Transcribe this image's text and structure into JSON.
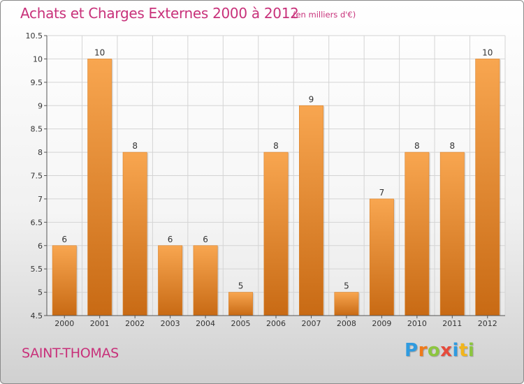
{
  "header": {
    "title": "Achats et Charges Externes 2000 à 2012",
    "subtitle": "(en milliers d'€)"
  },
  "footer": {
    "place_name": "SAINT-THOMAS",
    "logo_letters": [
      {
        "char": "P",
        "color": "#2f9be0"
      },
      {
        "char": "r",
        "color": "#ef7a1a"
      },
      {
        "char": "o",
        "color": "#8cc63f"
      },
      {
        "char": "x",
        "color": "#e64a3b"
      },
      {
        "char": "i",
        "color": "#2f9be0"
      },
      {
        "char": "t",
        "color": "#f2b51c"
      },
      {
        "char": "i",
        "color": "#8cc63f"
      }
    ]
  },
  "colors": {
    "title": "#c8317a",
    "bar_light": "#f8a650",
    "bar_dark": "#c86a14",
    "grid": "#d4d4d4",
    "axis_text": "#333333"
  },
  "chart_data": {
    "type": "bar",
    "categories": [
      "2000",
      "2001",
      "2002",
      "2003",
      "2004",
      "2005",
      "2006",
      "2007",
      "2008",
      "2009",
      "2010",
      "2011",
      "2012"
    ],
    "values": [
      6,
      10,
      8,
      6,
      6,
      5,
      8,
      9,
      5,
      7,
      8,
      8,
      10
    ],
    "data_labels": [
      "6",
      "10",
      "8",
      "6",
      "6",
      "5",
      "8",
      "9",
      "5",
      "7",
      "8",
      "8",
      "10"
    ],
    "ylim": [
      4.5,
      10.5
    ],
    "yticks": [
      4.5,
      5,
      5.5,
      6,
      6.5,
      7,
      7.5,
      8,
      8.5,
      9,
      9.5,
      10,
      10.5
    ],
    "ytick_labels": [
      "4.5",
      "5",
      "5.5",
      "6",
      "6.5",
      "7",
      "7.5",
      "8",
      "8.5",
      "9",
      "9.5",
      "10",
      "10.5"
    ],
    "grid": true,
    "legend": "none",
    "title": "Achats et Charges Externes 2000 à 2012",
    "xlabel": "",
    "ylabel": ""
  }
}
